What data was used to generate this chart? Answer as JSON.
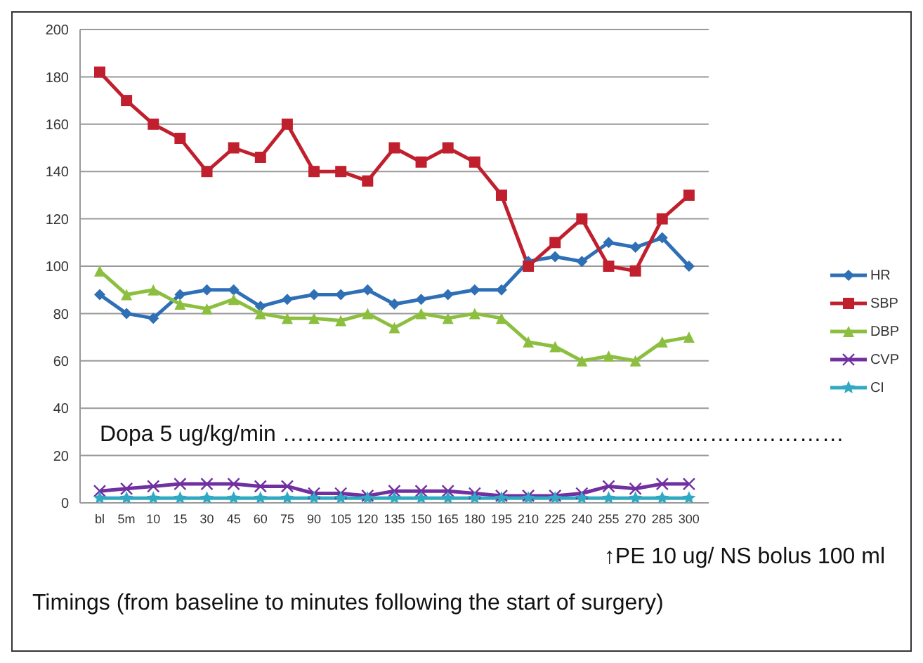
{
  "chart_data": {
    "type": "line",
    "xlabel": "Timings (from baseline to minutes following the start of surgery)",
    "categories": [
      "bl",
      "5m",
      "10",
      "15",
      "30",
      "45",
      "60",
      "75",
      "90",
      "105",
      "120",
      "135",
      "150",
      "165",
      "180",
      "195",
      "210",
      "225",
      "240",
      "255",
      "270",
      "285",
      "300"
    ],
    "series": [
      {
        "name": "HR",
        "color": "#2e6fb5",
        "marker": "diamond",
        "values": [
          88,
          80,
          78,
          88,
          90,
          90,
          83,
          86,
          88,
          88,
          90,
          84,
          86,
          88,
          90,
          90,
          102,
          104,
          102,
          110,
          108,
          112,
          100
        ]
      },
      {
        "name": "SBP",
        "color": "#c0202e",
        "marker": "square",
        "values": [
          182,
          170,
          160,
          154,
          140,
          150,
          146,
          160,
          140,
          140,
          136,
          150,
          144,
          150,
          144,
          130,
          100,
          110,
          120,
          100,
          98,
          120,
          130
        ]
      },
      {
        "name": "DBP",
        "color": "#8cbf3f",
        "marker": "triangle",
        "values": [
          98,
          88,
          90,
          84,
          82,
          86,
          80,
          78,
          78,
          77,
          80,
          74,
          80,
          78,
          80,
          78,
          68,
          66,
          60,
          62,
          60,
          68,
          70
        ]
      },
      {
        "name": "CVP",
        "color": "#7030a0",
        "marker": "cross",
        "values": [
          5,
          6,
          7,
          8,
          8,
          8,
          7,
          7,
          4,
          4,
          3,
          5,
          5,
          5,
          4,
          3,
          3,
          3,
          4,
          7,
          6,
          8,
          8
        ]
      },
      {
        "name": "CI",
        "color": "#31a9c2",
        "marker": "star",
        "values": [
          2,
          2,
          2,
          2,
          2,
          2,
          2,
          2,
          2,
          2,
          2,
          2,
          2,
          2,
          2,
          2,
          2,
          2,
          2,
          2,
          2,
          2,
          2
        ]
      }
    ],
    "ylim": [
      0,
      200
    ],
    "yticks": [
      0,
      20,
      40,
      60,
      80,
      100,
      120,
      140,
      160,
      180,
      200
    ],
    "grid": "y",
    "legend": "right",
    "line_style": "solid",
    "annotations": [
      "Dopa 5 ug/kg/min …………………………………………………………………",
      "↑PE 10 ug/ NS bolus 100 ml"
    ]
  }
}
